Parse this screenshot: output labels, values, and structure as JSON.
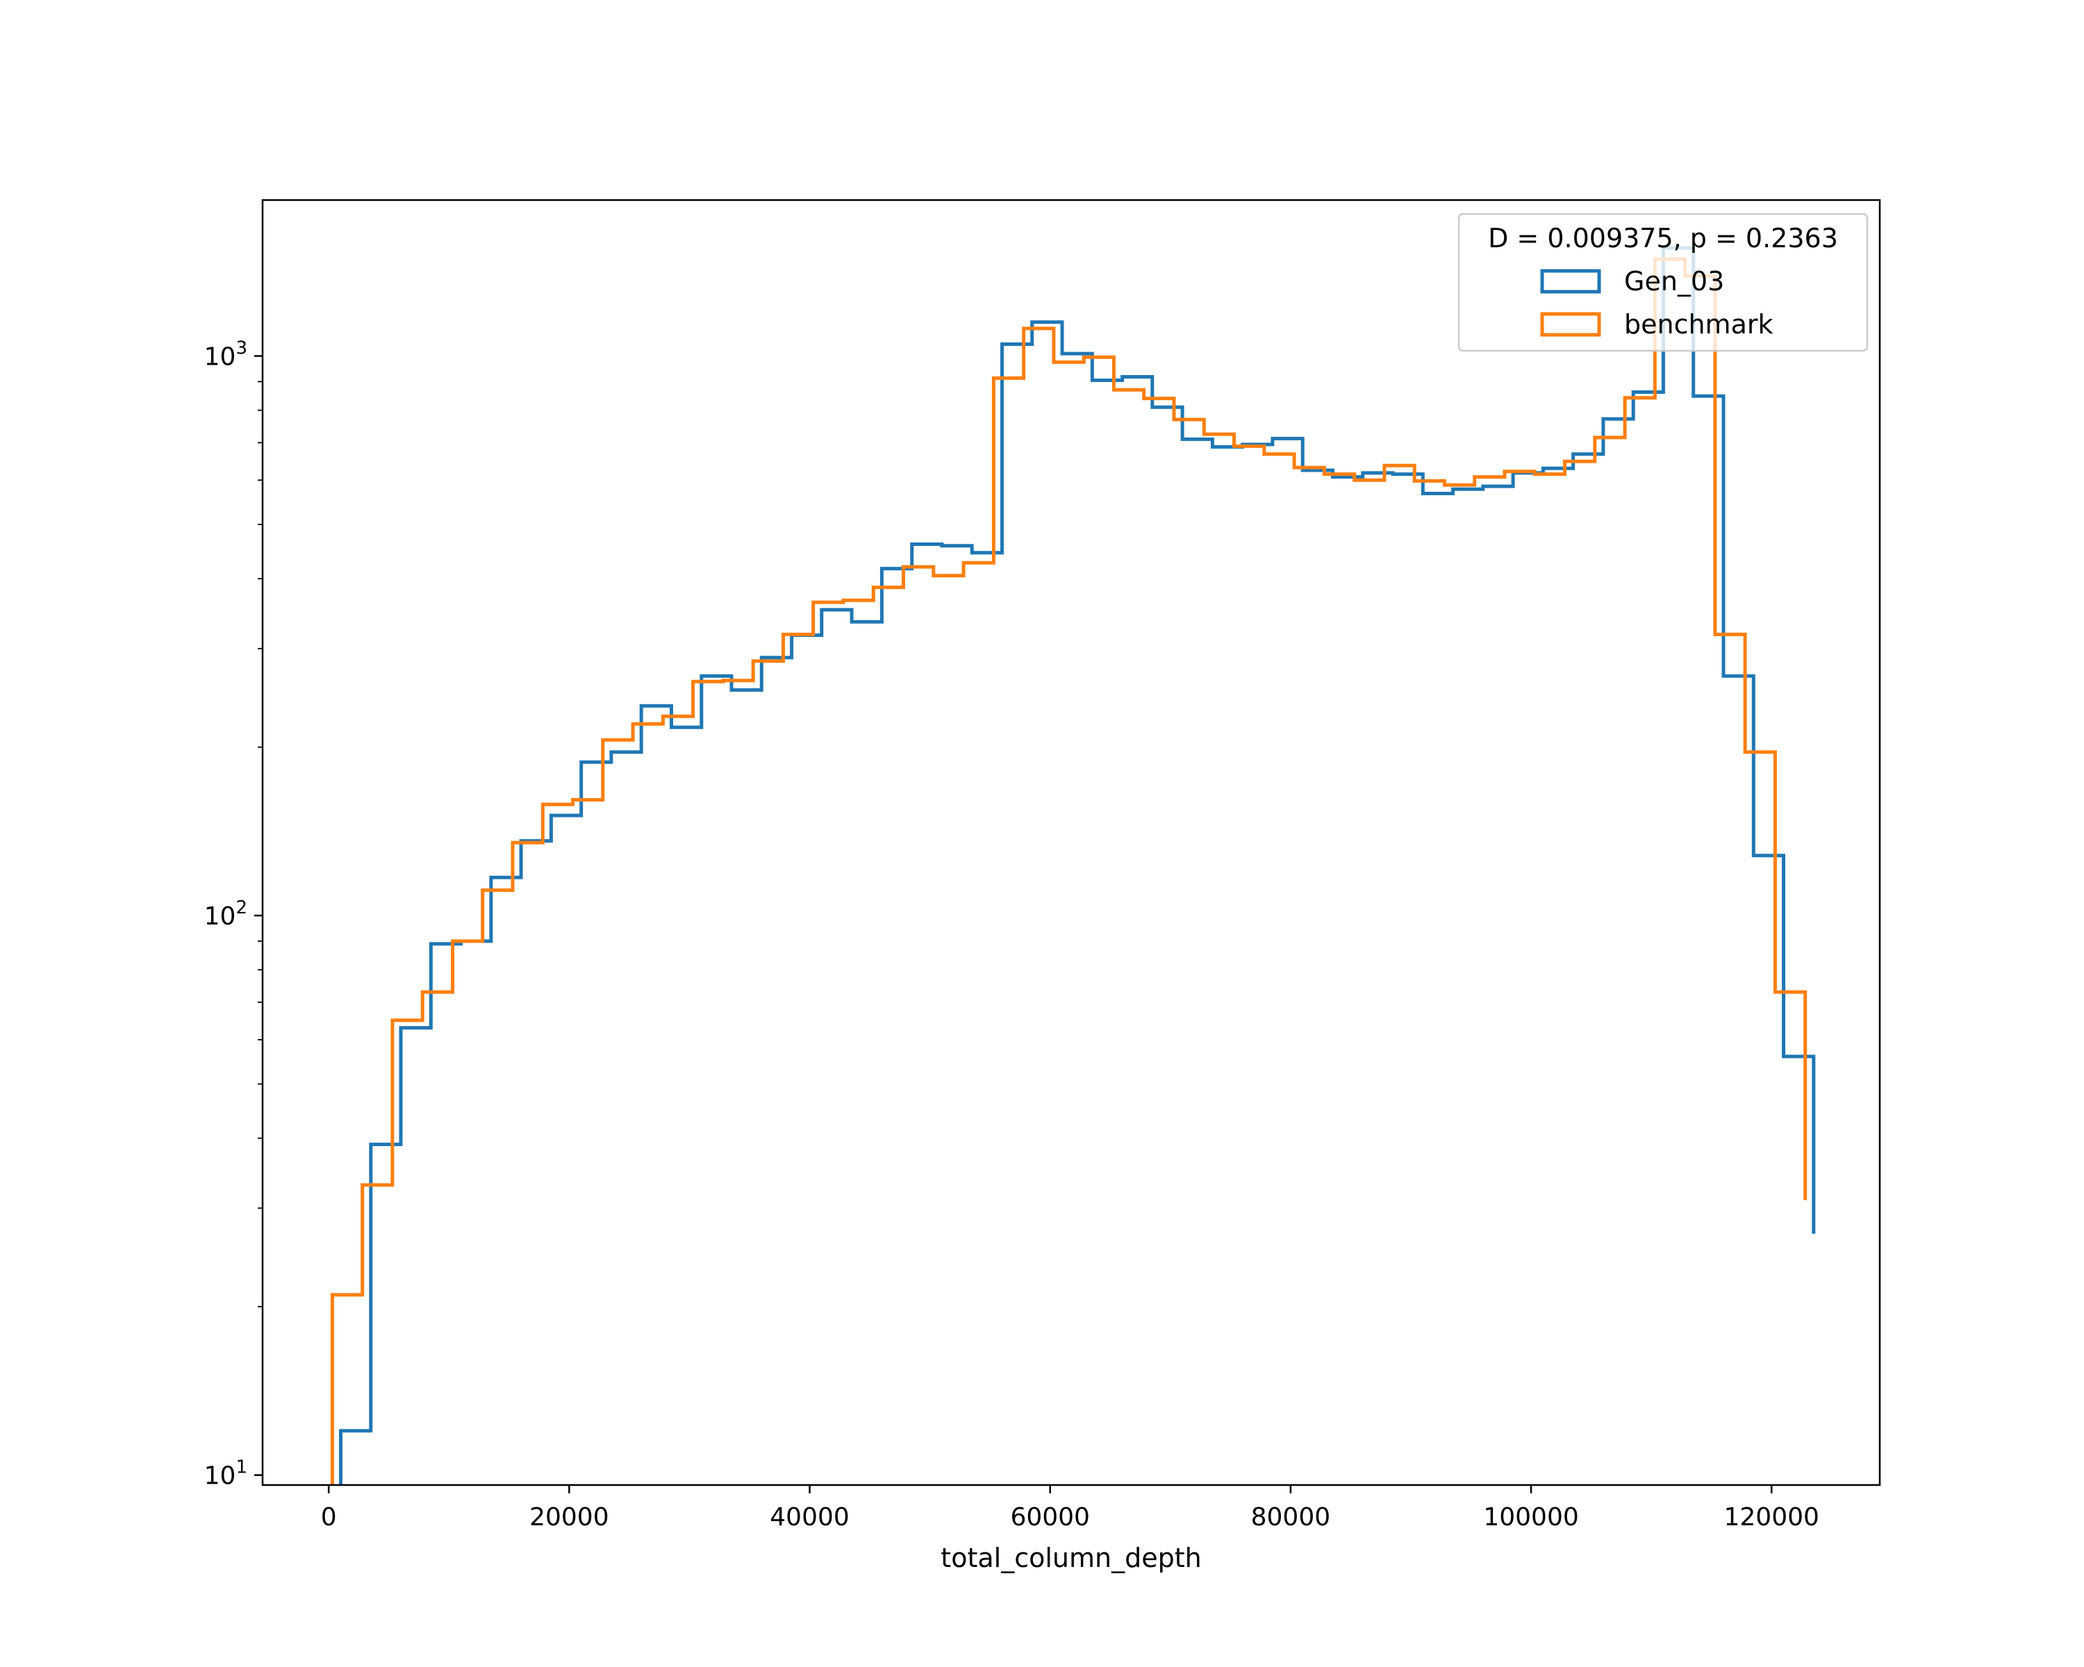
{
  "chart_data": {
    "type": "histogram",
    "xlabel": "total_column_depth",
    "ylabel": "",
    "yscale": "log",
    "xlim": [
      -5500,
      129000
    ],
    "ylim": [
      9.6,
      1900
    ],
    "x_ticks": [
      0,
      20000,
      40000,
      60000,
      80000,
      100000,
      120000
    ],
    "y_ticks": [
      {
        "value": 10,
        "base": "10",
        "exp": "1"
      },
      {
        "value": 100,
        "base": "10",
        "exp": "2"
      },
      {
        "value": 1000,
        "base": "10",
        "exp": "3"
      }
    ],
    "bin_edges": [
      1000,
      3500,
      6000,
      8500,
      11000,
      13500,
      16000,
      18500,
      21000,
      23500,
      26000,
      28500,
      31000,
      33500,
      36000,
      38500,
      41000,
      43500,
      46000,
      48500,
      51000,
      53500,
      56000,
      58500,
      61000,
      63500,
      66000,
      68500,
      71000,
      73500,
      76000,
      78500,
      81000,
      83500,
      86000,
      88500,
      91000,
      93500,
      96000,
      98500,
      101000,
      103500,
      106000,
      108500,
      111000,
      113500,
      116000,
      118500,
      121000,
      123500
    ],
    "legend": {
      "title": "D = 0.009375, p = 0.2363",
      "location": "upper right"
    },
    "series": [
      {
        "name": "Gen_03",
        "color": "#1f77b4",
        "offset": 0,
        "values": [
          12,
          39,
          63,
          89,
          90,
          117,
          136,
          151,
          188,
          196,
          237,
          217,
          268,
          253,
          289,
          317,
          352,
          335,
          417,
          461,
          458,
          445,
          1050,
          1150,
          1010,
          905,
          918,
          810,
          710,
          688,
          695,
          712,
          625,
          608,
          618,
          615,
          568,
          578,
          585,
          618,
          630,
          668,
          772,
          862,
          1560,
          848,
          268,
          128,
          56,
          27
        ]
      },
      {
        "name": "benchmark",
        "color": "#ff7f0e",
        "offset": -700,
        "values": [
          21,
          33,
          65,
          73,
          90,
          111,
          135,
          158,
          161,
          206,
          220,
          227,
          262,
          263,
          285,
          318,
          363,
          366,
          386,
          420,
          405,
          427,
          913,
          1120,
          975,
          995,
          870,
          840,
          770,
          725,
          690,
          668,
          632,
          615,
          600,
          637,
          598,
          588,
          608,
          622,
          615,
          648,
          715,
          842,
          1490,
          1390,
          318,
          196,
          73,
          31
        ]
      }
    ]
  }
}
